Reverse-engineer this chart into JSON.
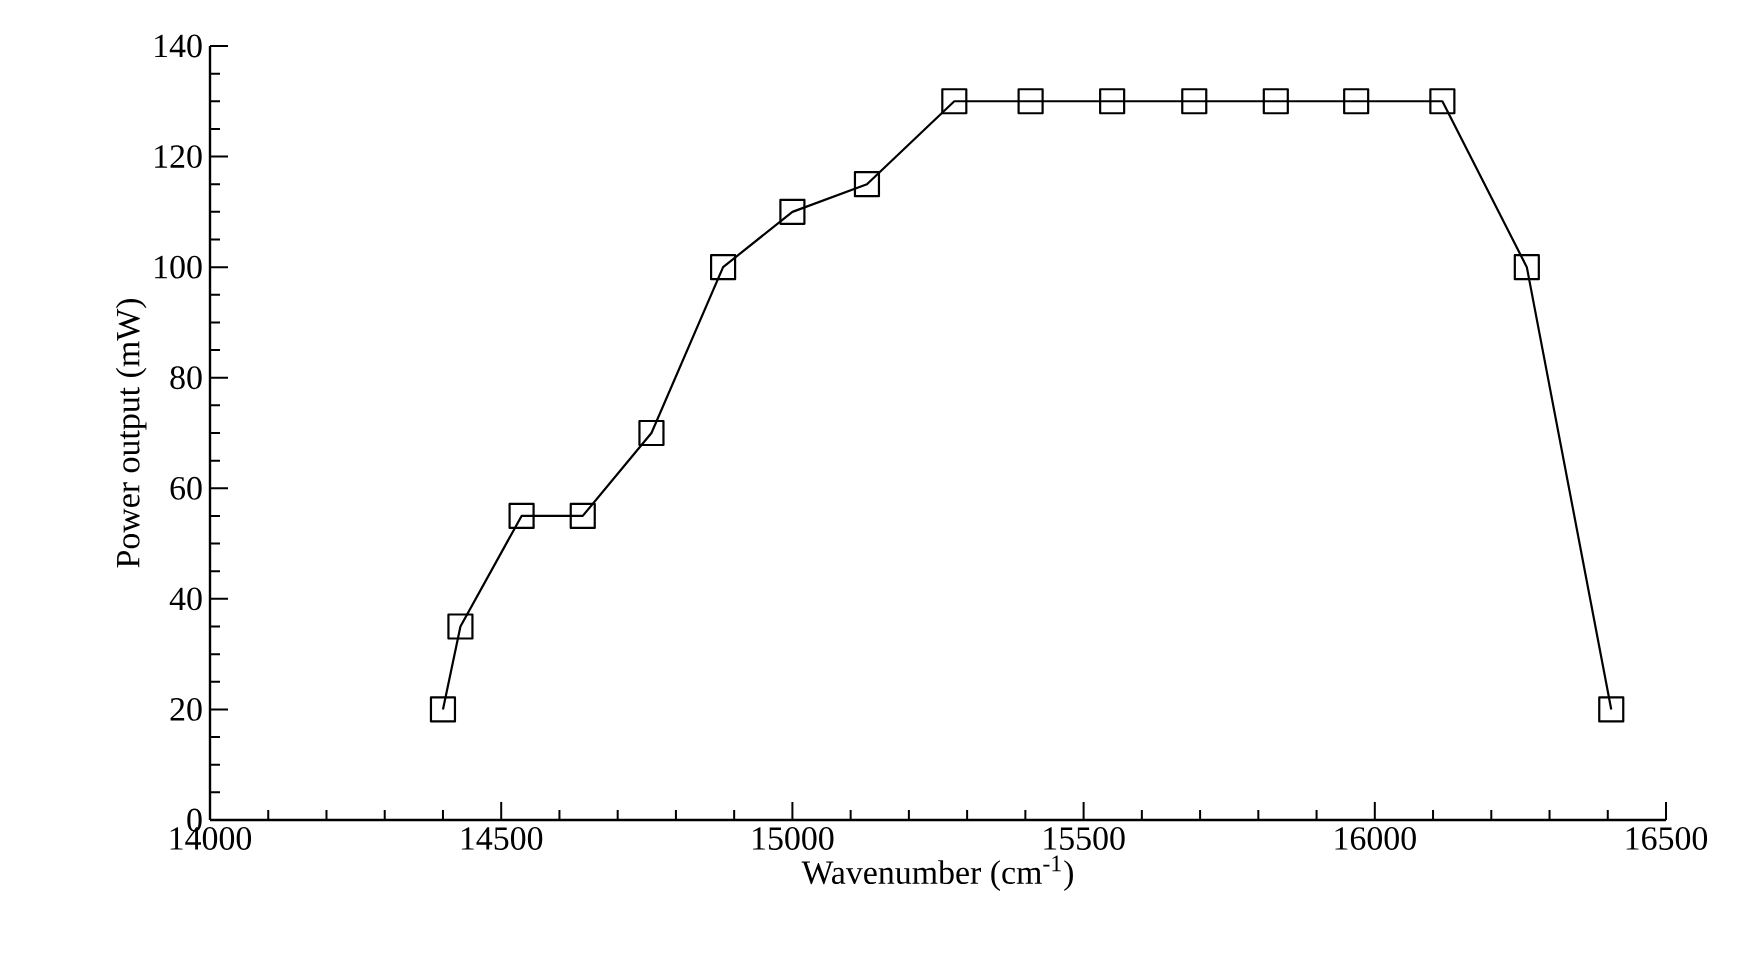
{
  "chart_data": {
    "type": "line",
    "xlabel": "Wavenumber (cm$^{-1}$)",
    "ylabel": "Power output (mW)",
    "x": [
      14400,
      14430,
      14535,
      14640,
      14758,
      14881,
      15000,
      15128,
      15278,
      15409,
      15549,
      15690,
      15830,
      15968,
      16116,
      16261,
      16406
    ],
    "series": [
      {
        "color": "#000000",
        "values": [
          20,
          35,
          55,
          55,
          70,
          100,
          110,
          115,
          130,
          130,
          130,
          130,
          130,
          130,
          130,
          100,
          20
        ]
      }
    ],
    "xlim": [
      14000,
      16500
    ],
    "ylim": [
      0,
      140
    ],
    "xticks": [
      14000,
      14500,
      15000,
      15500,
      16000,
      16500
    ],
    "yticks": [
      0,
      20,
      40,
      60,
      80,
      100,
      120,
      140
    ],
    "marker": "square",
    "line_style": "solid"
  }
}
